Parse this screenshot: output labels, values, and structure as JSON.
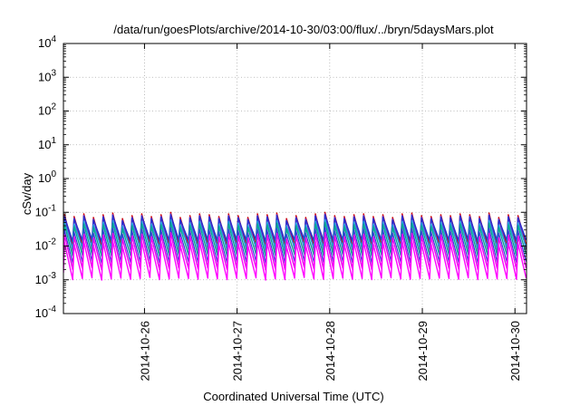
{
  "chart_data": {
    "type": "line",
    "title": "/data/run/goesPlots/archive/2014-10-30/03:00/flux/../bryn/5daysMars.plot",
    "xlabel": "Coordinated Universal Time (UTC)",
    "ylabel": "cSv/day",
    "y_scale": "log",
    "ylim": [
      0.0001,
      10000
    ],
    "y_ticks": [
      {
        "value": 0.0001,
        "base": "10",
        "exp": "-4"
      },
      {
        "value": 0.001,
        "base": "10",
        "exp": "-3"
      },
      {
        "value": 0.01,
        "base": "10",
        "exp": "-2"
      },
      {
        "value": 0.1,
        "base": "10",
        "exp": "-1"
      },
      {
        "value": 1,
        "base": "10",
        "exp": "0"
      },
      {
        "value": 10,
        "base": "10",
        "exp": "1"
      },
      {
        "value": 100,
        "base": "10",
        "exp": "2"
      },
      {
        "value": 1000,
        "base": "10",
        "exp": "3"
      },
      {
        "value": 10000,
        "base": "10",
        "exp": "4"
      }
    ],
    "xlim": [
      "2014-10-25 03:00",
      "2014-10-30 03:00"
    ],
    "x_ticks": [
      "2014-10-26",
      "2014-10-27",
      "2014-10-28",
      "2014-10-29",
      "2014-10-30"
    ],
    "grid": true,
    "legend": "none",
    "cycle_hours": 2.5,
    "tooth_peaks": [
      0.085,
      0.075,
      0.09,
      0.07,
      0.085,
      0.095,
      0.065,
      0.08,
      0.09,
      0.075,
      0.085,
      0.1,
      0.07,
      0.08,
      0.09,
      0.085,
      0.075,
      0.09,
      0.08,
      0.07,
      0.09,
      0.085,
      0.095,
      0.065,
      0.08,
      0.07,
      0.09,
      0.1,
      0.08,
      0.075,
      0.085,
      0.09,
      0.075,
      0.085,
      0.07,
      0.09,
      0.095,
      0.08,
      0.075,
      0.085,
      0.08,
      0.09,
      0.085,
      0.075,
      0.095,
      0.07,
      0.085,
      0.08
    ],
    "series": [
      {
        "color": "#cc0000",
        "width": 1.4,
        "peak_factor": 1.0,
        "trough": 0.0085
      },
      {
        "color": "#9b2fae",
        "width": 1.4,
        "peak_factor": 0.9,
        "trough": 0.0065
      },
      {
        "color": "#2a2fcf",
        "width": 1.6,
        "peak_factor": 0.85,
        "trough": 0.012
      },
      {
        "color": "#1aa0e0",
        "width": 1.4,
        "peak_factor": 0.6,
        "trough": 0.0075
      },
      {
        "color": "#0aa88f",
        "width": 1.4,
        "peak_factor": 0.5,
        "trough": 0.0045
      },
      {
        "color": "#3a3ad8",
        "width": 1.2,
        "peak_factor": 0.35,
        "trough": 0.0028
      },
      {
        "color": "#ee00ee",
        "width": 1.4,
        "peak_factor": 0.25,
        "trough": 0.0018
      },
      {
        "color": "#ff00ff",
        "width": 1.4,
        "peak_factor": 0.15,
        "trough": 0.0009
      }
    ]
  }
}
